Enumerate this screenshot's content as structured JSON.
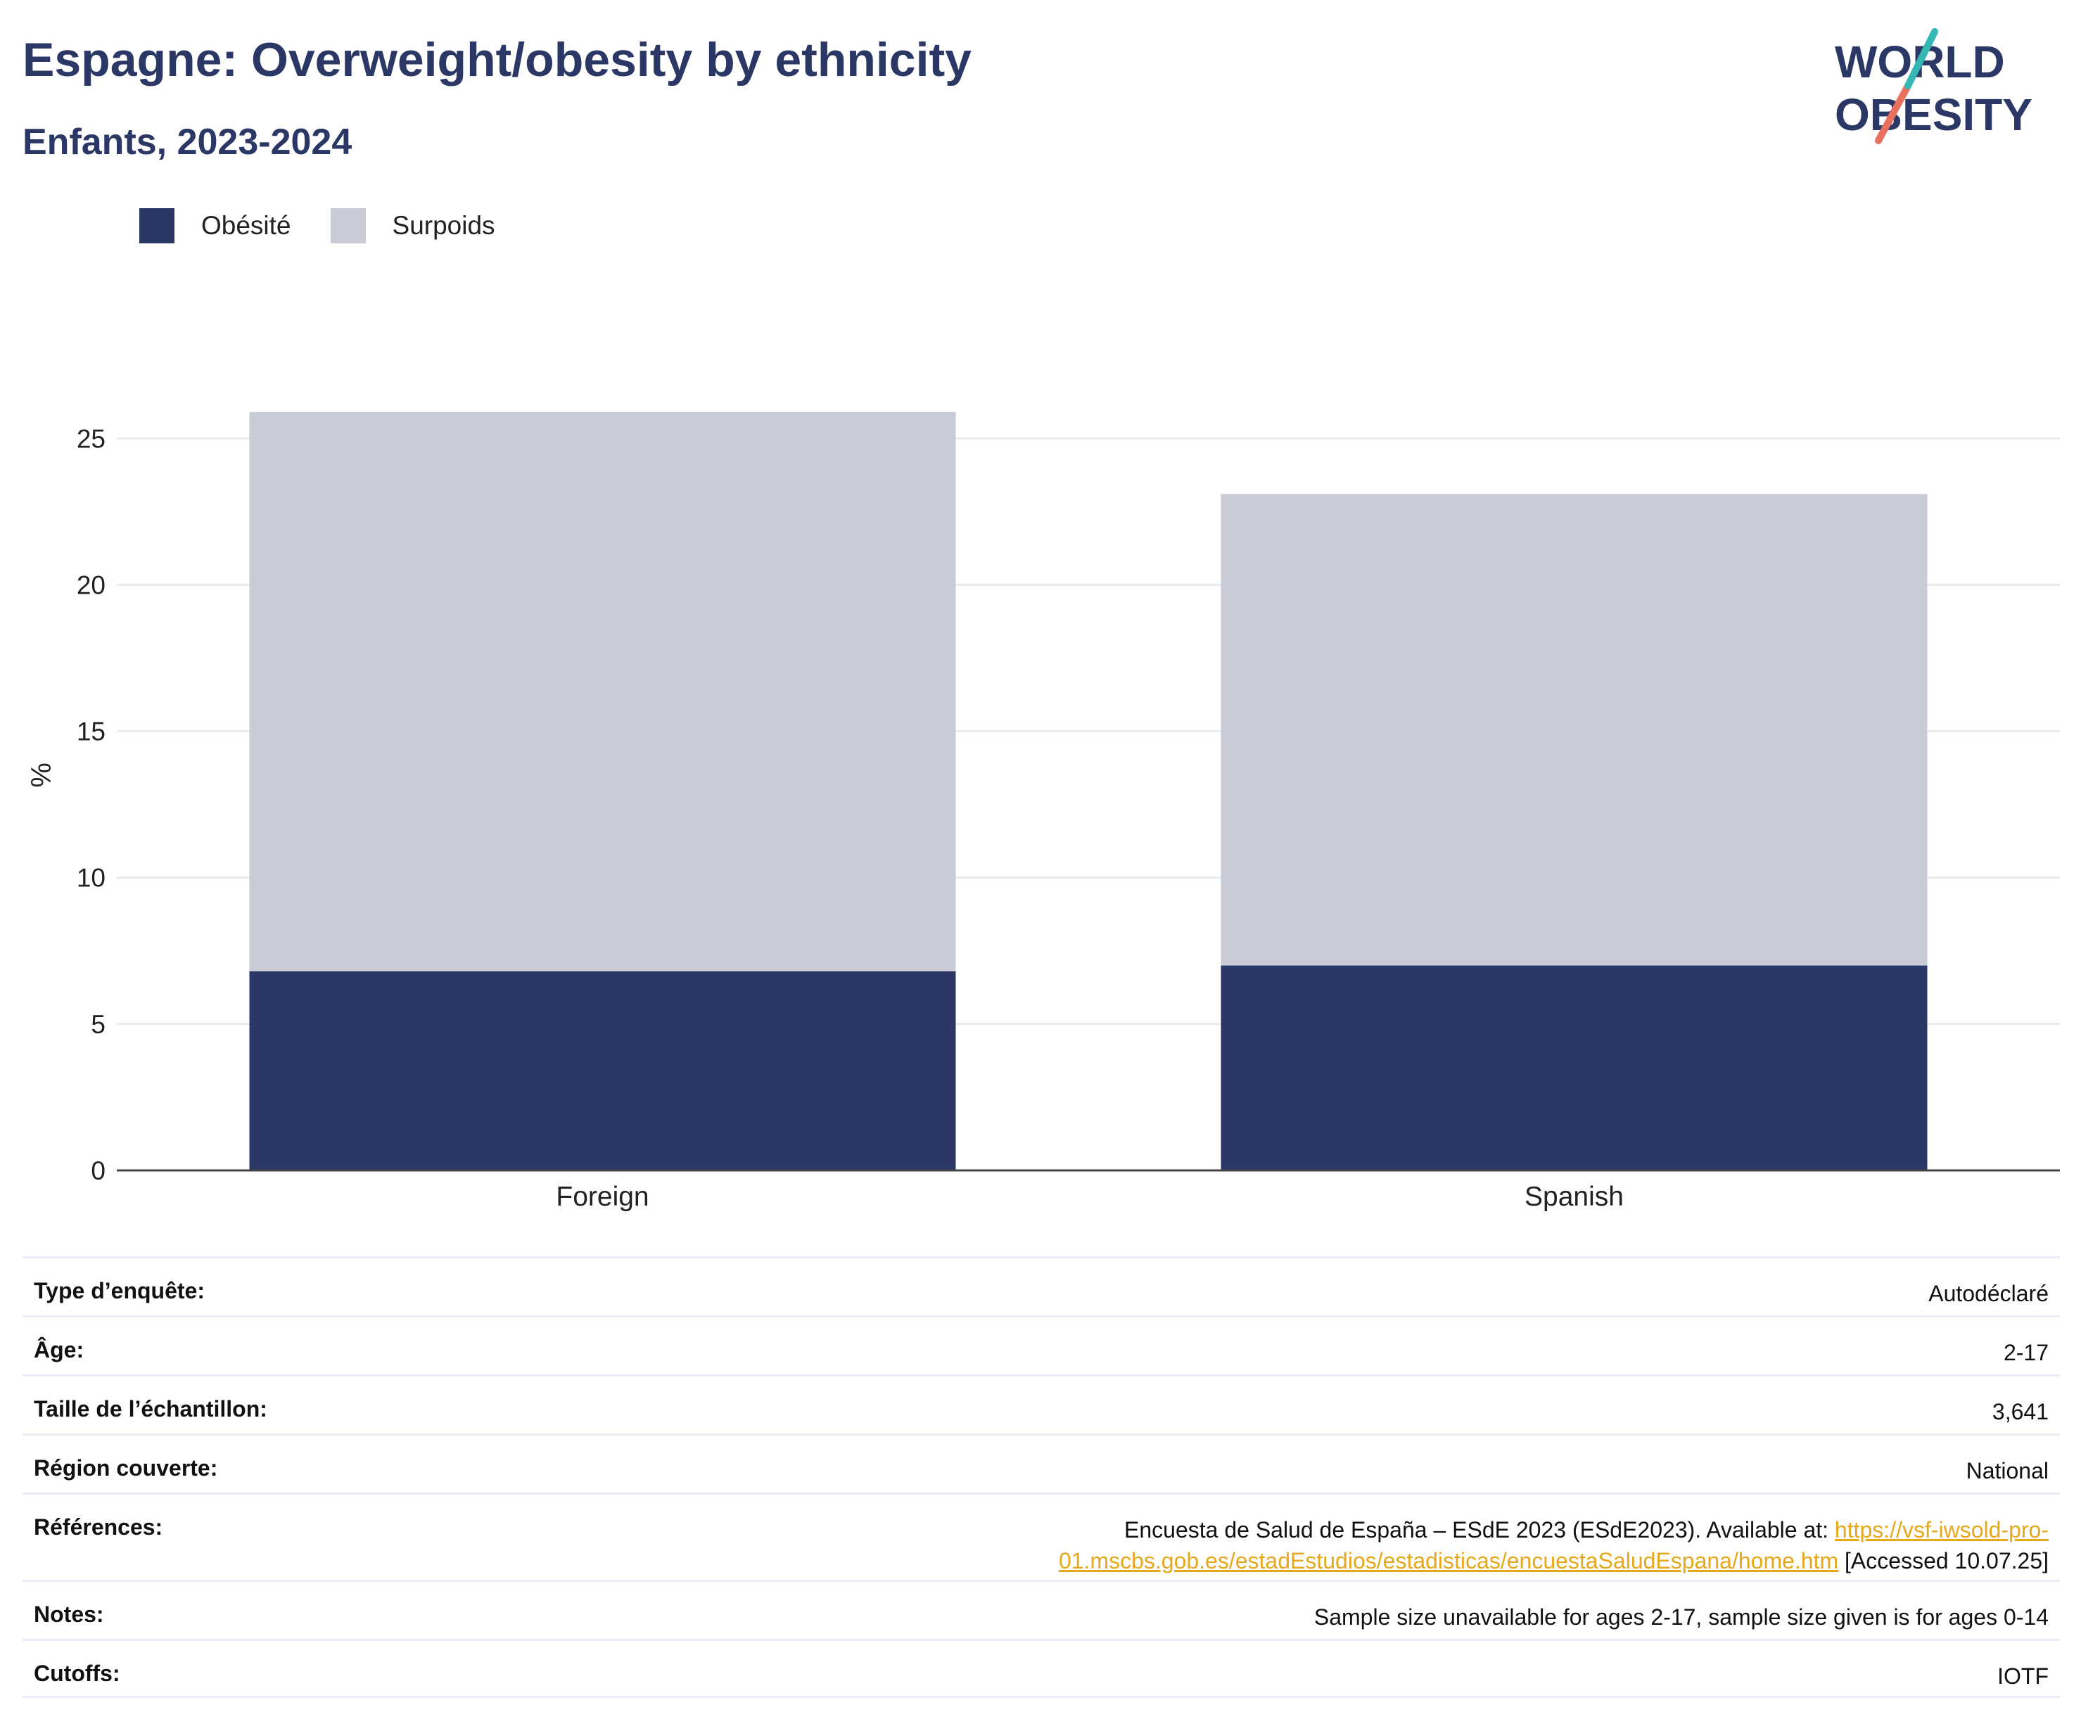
{
  "header": {
    "title": "Espagne: Overweight/obesity by ethnicity",
    "subtitle": "Enfants, 2023-2024",
    "logo_line1": "WORLD",
    "logo_line2": "OBESITY"
  },
  "legend": [
    {
      "label": "Obésité",
      "color": "#2b3764"
    },
    {
      "label": "Surpoids",
      "color": "#c9ccd7"
    }
  ],
  "chart_data": {
    "type": "bar",
    "stacked": true,
    "categories": [
      "Foreign",
      "Spanish"
    ],
    "series": [
      {
        "name": "Obésité",
        "color": "#2b3764",
        "values": [
          6.8,
          7.0
        ]
      },
      {
        "name": "Surpoids",
        "color": "#c9ccd7",
        "values": [
          19.1,
          16.1
        ]
      }
    ],
    "ylabel": "%",
    "ylim": [
      0,
      27
    ],
    "yticks": [
      0,
      5,
      10,
      15,
      20,
      25
    ],
    "grid": true,
    "legend_position": "top-left"
  },
  "info": [
    {
      "label": "Type d’enquête:",
      "value": "Autodéclaré"
    },
    {
      "label": "Âge:",
      "value": "2-17"
    },
    {
      "label": "Taille de l’échantillon:",
      "value": "3,641"
    },
    {
      "label": "Région couverte:",
      "value": "National"
    },
    {
      "label": "Références:",
      "value_prefix": "Encuesta de Salud de España – ESdE 2023 (ESdE2023). Available at: ",
      "link_line1": "https://vsf-iwsold-pro-",
      "link_line2": "01.mscbs.gob.es/estadEstudios/estadisticas/encuestaSaludEspana/home.htm",
      "value_suffix": " [Accessed 10.07.25]"
    },
    {
      "label": "Notes:",
      "value": "Sample size unavailable for ages 2-17, sample size given is for ages 0-14"
    },
    {
      "label": "Cutoffs:",
      "value": "IOTF"
    }
  ]
}
